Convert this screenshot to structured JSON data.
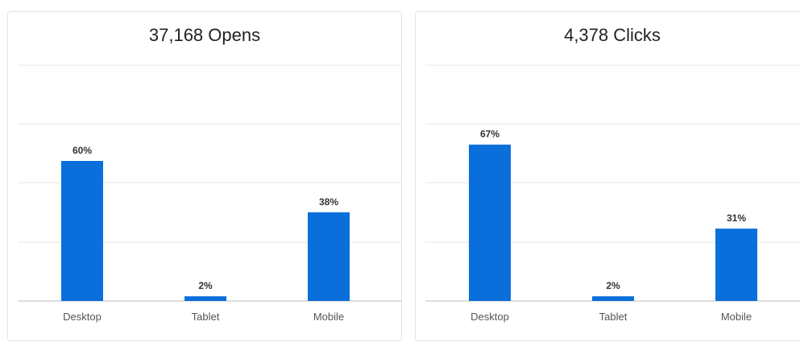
{
  "chart_data": [
    {
      "type": "bar",
      "title": "37,168 Opens",
      "categories": [
        "Desktop",
        "Tablet",
        "Mobile"
      ],
      "values": [
        60,
        2,
        38
      ],
      "value_labels": [
        "60%",
        "2%",
        "38%"
      ],
      "ylim": [
        0,
        100
      ],
      "grid": true,
      "bar_color": "#0a6fdb"
    },
    {
      "type": "bar",
      "title": "4,378 Clicks",
      "categories": [
        "Desktop",
        "Tablet",
        "Mobile"
      ],
      "values": [
        67,
        2,
        31
      ],
      "value_labels": [
        "67%",
        "2%",
        "31%"
      ],
      "ylim": [
        0,
        100
      ],
      "grid": true,
      "bar_color": "#0a6fdb"
    }
  ]
}
